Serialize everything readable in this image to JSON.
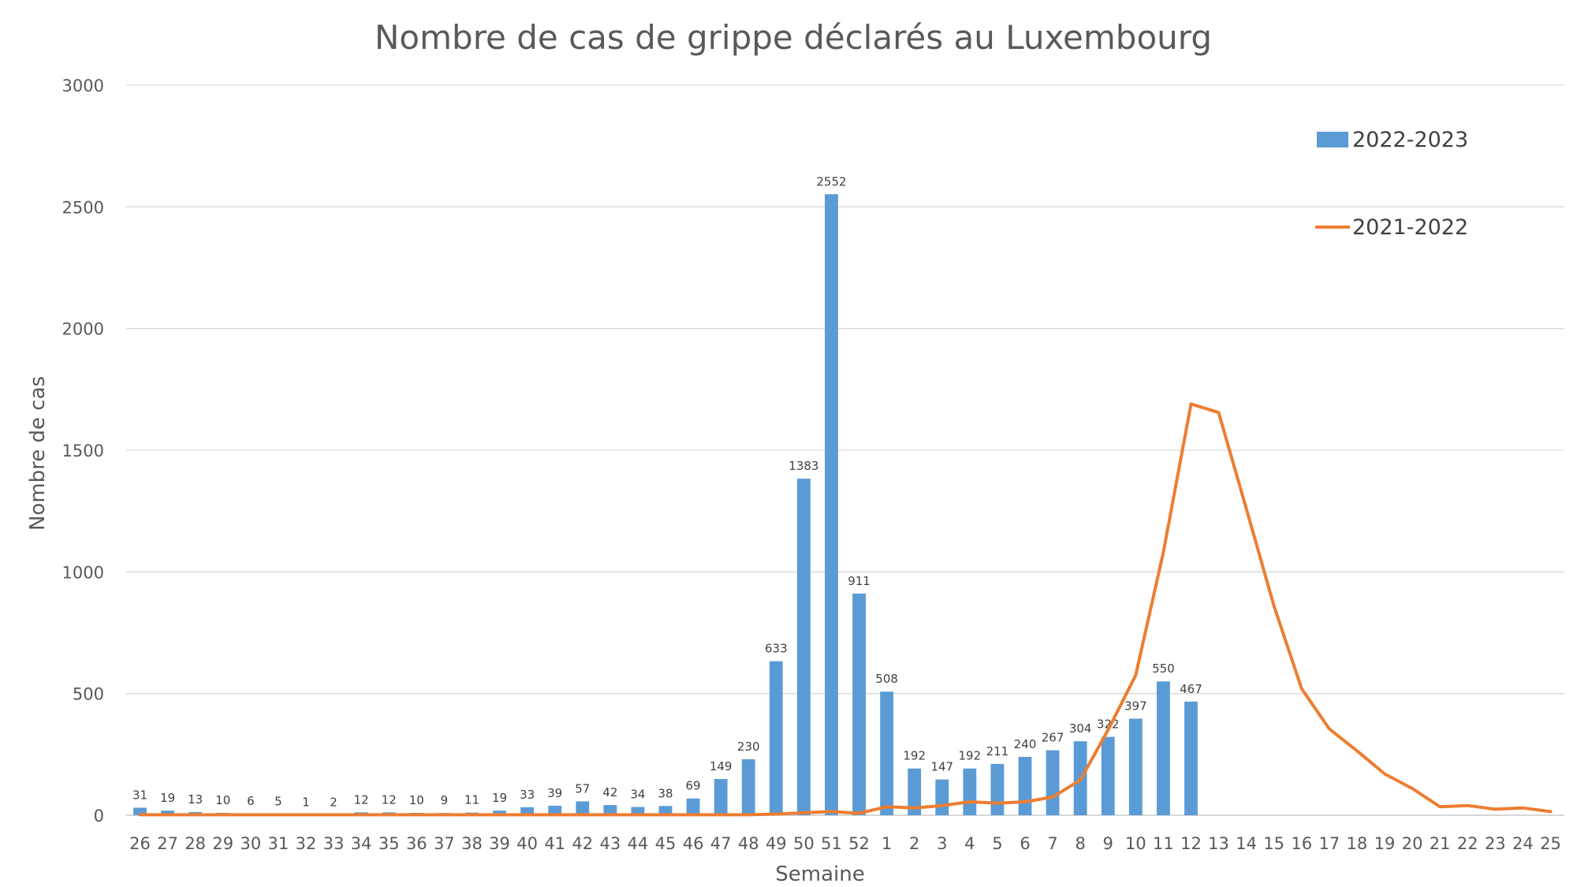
{
  "chart_data": {
    "type": "bar",
    "title": "Nombre de cas de grippe déclarés au Luxembourg",
    "xlabel": "Semaine",
    "ylabel": "Nombre de cas",
    "ylim": [
      0,
      3000
    ],
    "yticks": [
      0,
      500,
      1000,
      1500,
      2000,
      2500,
      3000
    ],
    "grid": true,
    "legend_position": "top-right",
    "categories": [
      "26",
      "27",
      "28",
      "29",
      "30",
      "31",
      "32",
      "33",
      "34",
      "35",
      "36",
      "37",
      "38",
      "39",
      "40",
      "41",
      "42",
      "43",
      "44",
      "45",
      "46",
      "47",
      "48",
      "49",
      "50",
      "51",
      "52",
      "1",
      "2",
      "3",
      "4",
      "5",
      "6",
      "7",
      "8",
      "9",
      "10",
      "11",
      "12",
      "13",
      "14",
      "15",
      "16",
      "17",
      "18",
      "19",
      "20",
      "21",
      "22",
      "23",
      "24",
      "25"
    ],
    "series": [
      {
        "name": "2022-2023",
        "type": "bar",
        "color": "#5b9bd5",
        "values": [
          31,
          19,
          13,
          10,
          6,
          5,
          1,
          2,
          12,
          12,
          10,
          9,
          11,
          19,
          33,
          39,
          57,
          42,
          34,
          38,
          69,
          149,
          230,
          633,
          1383,
          2552,
          911,
          508,
          192,
          147,
          192,
          211,
          240,
          267,
          304,
          322,
          397,
          550,
          467,
          null,
          null,
          null,
          null,
          null,
          null,
          null,
          null,
          null,
          null,
          null,
          null,
          null
        ]
      },
      {
        "name": "2021-2022",
        "type": "line",
        "color": "#ed7d31",
        "values": [
          2,
          2,
          2,
          2,
          2,
          2,
          2,
          2,
          2,
          2,
          2,
          2,
          2,
          2,
          2,
          2,
          2,
          2,
          2,
          2,
          2,
          2,
          2,
          5,
          10,
          15,
          8,
          35,
          30,
          40,
          55,
          50,
          55,
          75,
          145,
          350,
          575,
          1080,
          1690,
          1655,
          1260,
          860,
          520,
          355,
          265,
          170,
          110,
          35,
          40,
          25,
          30,
          15
        ]
      }
    ]
  }
}
